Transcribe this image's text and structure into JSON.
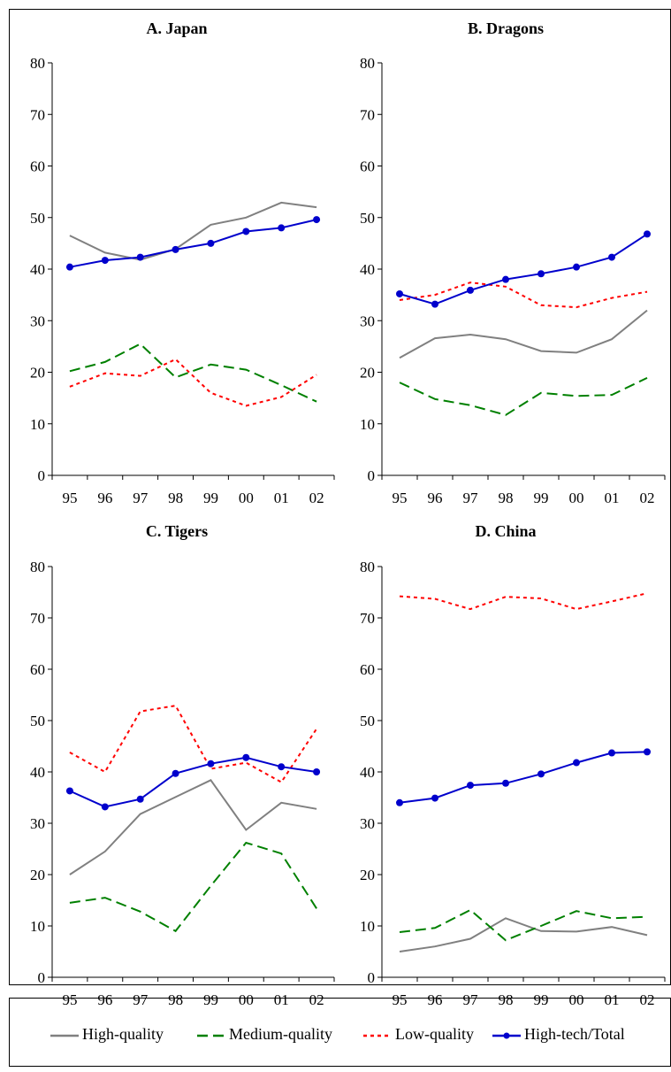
{
  "chart_data": [
    {
      "type": "line",
      "title": "A. Japan",
      "x": [
        "95",
        "96",
        "97",
        "98",
        "99",
        "00",
        "01",
        "02"
      ],
      "ylim": [
        0,
        80
      ],
      "yticks": [
        "0",
        "10",
        "20",
        "30",
        "40",
        "50",
        "60",
        "70",
        "80"
      ],
      "series": [
        {
          "name": "High-quality",
          "values": [
            46.5,
            43.2,
            41.8,
            43.9,
            48.6,
            50.0,
            52.9,
            52.0
          ]
        },
        {
          "name": "Medium-quality",
          "values": [
            20.2,
            22.0,
            25.5,
            19.0,
            21.5,
            20.5,
            17.5,
            14.3
          ]
        },
        {
          "name": "Low-quality",
          "values": [
            17.2,
            19.8,
            19.3,
            22.5,
            16.0,
            13.5,
            15.2,
            19.5
          ]
        },
        {
          "name": "High-tech/Total",
          "values": [
            40.4,
            41.7,
            42.3,
            43.8,
            45.0,
            47.3,
            48.0,
            49.6
          ]
        }
      ]
    },
    {
      "type": "line",
      "title": "B. Dragons",
      "x": [
        "95",
        "96",
        "97",
        "98",
        "99",
        "00",
        "01",
        "02"
      ],
      "ylim": [
        0,
        80
      ],
      "yticks": [
        "0",
        "10",
        "20",
        "30",
        "40",
        "50",
        "60",
        "70",
        "80"
      ],
      "series": [
        {
          "name": "High-quality",
          "values": [
            22.8,
            26.6,
            27.3,
            26.4,
            24.1,
            23.8,
            26.4,
            32.0
          ]
        },
        {
          "name": "Medium-quality",
          "values": [
            18.0,
            14.8,
            13.6,
            11.7,
            16.0,
            15.4,
            15.6,
            18.9
          ]
        },
        {
          "name": "Low-quality",
          "values": [
            34.0,
            35.0,
            37.4,
            36.6,
            33.0,
            32.6,
            34.4,
            35.6
          ]
        },
        {
          "name": "High-tech/Total",
          "values": [
            35.2,
            33.2,
            35.9,
            38.0,
            39.1,
            40.4,
            42.3,
            46.8
          ]
        }
      ]
    },
    {
      "type": "line",
      "title": "C. Tigers",
      "x": [
        "95",
        "96",
        "97",
        "98",
        "99",
        "00",
        "01",
        "02"
      ],
      "ylim": [
        0,
        80
      ],
      "yticks": [
        "0",
        "10",
        "20",
        "30",
        "40",
        "50",
        "60",
        "70",
        "80"
      ],
      "series": [
        {
          "name": "High-quality",
          "values": [
            20.0,
            24.5,
            31.8,
            35.1,
            38.4,
            28.7,
            34.0,
            32.8
          ]
        },
        {
          "name": "Medium-quality",
          "values": [
            14.5,
            15.5,
            12.8,
            9.0,
            17.8,
            26.2,
            24.1,
            13.4
          ]
        },
        {
          "name": "Low-quality",
          "values": [
            43.8,
            40.0,
            51.8,
            52.9,
            40.6,
            41.8,
            38.0,
            48.4
          ]
        },
        {
          "name": "High-tech/Total",
          "values": [
            36.3,
            33.2,
            34.7,
            39.7,
            41.6,
            42.8,
            41.0,
            40.0
          ]
        }
      ]
    },
    {
      "type": "line",
      "title": "D. China",
      "x": [
        "95",
        "96",
        "97",
        "98",
        "99",
        "00",
        "01",
        "02"
      ],
      "ylim": [
        0,
        80
      ],
      "yticks": [
        "0",
        "10",
        "20",
        "30",
        "40",
        "50",
        "60",
        "70",
        "80"
      ],
      "series": [
        {
          "name": "High-quality",
          "values": [
            5.0,
            6.0,
            7.5,
            11.5,
            9.0,
            8.9,
            9.8,
            8.2
          ]
        },
        {
          "name": "Medium-quality",
          "values": [
            8.8,
            9.6,
            13.1,
            7.2,
            10.0,
            12.9,
            11.5,
            11.8
          ]
        },
        {
          "name": "Low-quality",
          "values": [
            74.2,
            73.7,
            71.7,
            74.1,
            73.8,
            71.7,
            73.2,
            74.8
          ]
        },
        {
          "name": "High-tech/Total",
          "values": [
            34.0,
            34.9,
            37.4,
            37.8,
            39.6,
            41.8,
            43.7,
            43.9
          ]
        }
      ]
    }
  ],
  "legend": [
    {
      "label": "High-quality",
      "color": "#808080",
      "style": "solid",
      "marker": "none"
    },
    {
      "label": "Medium-quality",
      "color": "#008000",
      "style": "dashed",
      "marker": "none"
    },
    {
      "label": "Low-quality",
      "color": "#ff0000",
      "style": "dotted",
      "marker": "none"
    },
    {
      "label": "High-tech/Total",
      "color": "#0000cc",
      "style": "solid",
      "marker": "circle"
    }
  ]
}
